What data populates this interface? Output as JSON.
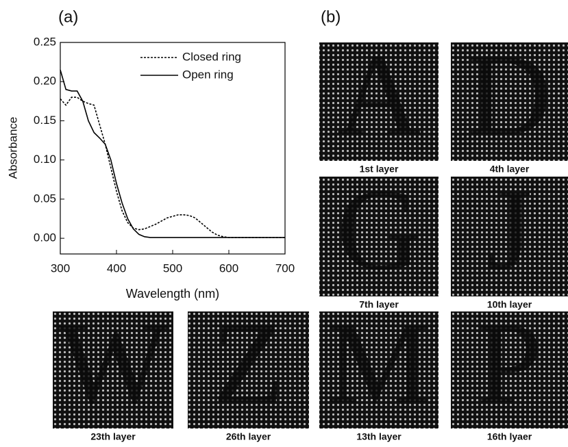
{
  "chart_data": {
    "type": "line",
    "x_label": "Wavelength (nm)",
    "y_label": "Absorbance",
    "x": [
      300,
      310,
      320,
      330,
      340,
      350,
      360,
      370,
      380,
      390,
      400,
      410,
      420,
      430,
      440,
      450,
      460,
      470,
      480,
      490,
      500,
      510,
      520,
      530,
      540,
      550,
      560,
      570,
      580,
      590,
      600,
      610,
      620,
      630,
      640,
      650,
      660,
      670,
      680,
      690,
      700
    ],
    "series": [
      {
        "name": "Closed ring",
        "color": "#000000",
        "dash": "dotted",
        "values": [
          0.178,
          0.17,
          0.18,
          0.18,
          0.175,
          0.172,
          0.17,
          0.145,
          0.12,
          0.09,
          0.06,
          0.035,
          0.02,
          0.013,
          0.011,
          0.012,
          0.015,
          0.018,
          0.022,
          0.026,
          0.028,
          0.03,
          0.03,
          0.029,
          0.026,
          0.02,
          0.014,
          0.008,
          0.004,
          0.002,
          0.001,
          0.001,
          0.001,
          0.001,
          0.001,
          0.001,
          0.001,
          0.001,
          0.001,
          0.001,
          0.001
        ]
      },
      {
        "name": "Open ring",
        "color": "#000000",
        "dash": "solid",
        "values": [
          0.215,
          0.19,
          0.188,
          0.188,
          0.175,
          0.15,
          0.135,
          0.128,
          0.12,
          0.1,
          0.07,
          0.045,
          0.025,
          0.012,
          0.005,
          0.002,
          0.001,
          0.001,
          0.001,
          0.001,
          0.001,
          0.001,
          0.001,
          0.001,
          0.001,
          0.001,
          0.001,
          0.001,
          0.001,
          0.001,
          0.001,
          0.001,
          0.001,
          0.001,
          0.001,
          0.001,
          0.001,
          0.001,
          0.001,
          0.001,
          0.001
        ]
      }
    ],
    "xlim": [
      300,
      700
    ],
    "xticks": [
      300,
      400,
      500,
      600,
      700
    ],
    "ylim": [
      -0.02,
      0.25
    ],
    "yticks": [
      {
        "value": 0,
        "label": "0.00"
      },
      {
        "value": 0.05,
        "label": "0.05"
      },
      {
        "value": 0.1,
        "label": "0.10"
      },
      {
        "value": 0.15,
        "label": "0.15"
      },
      {
        "value": 0.2,
        "label": "0.20"
      },
      {
        "value": 0.25,
        "label": "0.25"
      }
    ],
    "legend": "upper right"
  },
  "panel_labels": [
    "(a)",
    "(b)"
  ],
  "panels": [
    {
      "letter": "A",
      "caption": "1st layer"
    },
    {
      "letter": "D",
      "caption": "4th layer"
    },
    {
      "letter": "G",
      "caption": "7th layer"
    },
    {
      "letter": "J",
      "caption": "10th layer"
    },
    {
      "letter": "M",
      "caption": "13th layer"
    },
    {
      "letter": "P",
      "caption": "16th lyaer"
    },
    {
      "letter": "W",
      "caption": "23th layer"
    },
    {
      "letter": "Z",
      "caption": "26th layer"
    }
  ]
}
